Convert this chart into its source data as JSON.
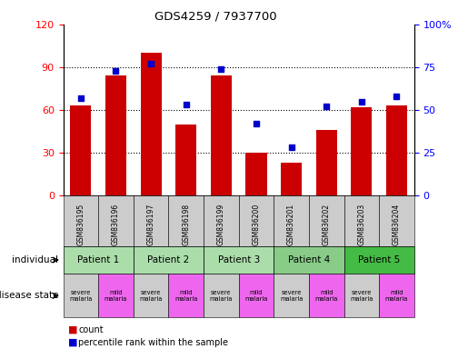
{
  "title": "GDS4259 / 7937700",
  "samples": [
    "GSM836195",
    "GSM836196",
    "GSM836197",
    "GSM836198",
    "GSM836199",
    "GSM836200",
    "GSM836201",
    "GSM836202",
    "GSM836203",
    "GSM836204"
  ],
  "counts": [
    63,
    84,
    100,
    50,
    84,
    30,
    23,
    46,
    62,
    63
  ],
  "percentiles": [
    57,
    73,
    77,
    53,
    74,
    42,
    28,
    52,
    55,
    58
  ],
  "ylim_left": [
    0,
    120
  ],
  "ylim_right": [
    0,
    100
  ],
  "yticks_left": [
    0,
    30,
    60,
    90,
    120
  ],
  "yticks_right": [
    0,
    25,
    50,
    75,
    100
  ],
  "ytick_labels_right": [
    "0",
    "25",
    "50",
    "75",
    "100%"
  ],
  "bar_color": "#cc0000",
  "dot_color": "#0000cc",
  "patients": [
    {
      "label": "Patient 1",
      "cols": [
        0,
        1
      ],
      "color": "#aaddaa"
    },
    {
      "label": "Patient 2",
      "cols": [
        2,
        3
      ],
      "color": "#aaddaa"
    },
    {
      "label": "Patient 3",
      "cols": [
        4,
        5
      ],
      "color": "#aaddaa"
    },
    {
      "label": "Patient 4",
      "cols": [
        6,
        7
      ],
      "color": "#88cc88"
    },
    {
      "label": "Patient 5",
      "cols": [
        8,
        9
      ],
      "color": "#44bb44"
    }
  ],
  "disease_states": [
    {
      "label": "severe\nmalaria",
      "col": 0,
      "color": "#cccccc"
    },
    {
      "label": "mild\nmalaria",
      "col": 1,
      "color": "#ee66ee"
    },
    {
      "label": "severe\nmalaria",
      "col": 2,
      "color": "#cccccc"
    },
    {
      "label": "mild\nmalaria",
      "col": 3,
      "color": "#ee66ee"
    },
    {
      "label": "severe\nmalaria",
      "col": 4,
      "color": "#cccccc"
    },
    {
      "label": "mild\nmalaria",
      "col": 5,
      "color": "#ee66ee"
    },
    {
      "label": "severe\nmalaria",
      "col": 6,
      "color": "#cccccc"
    },
    {
      "label": "mild\nmalaria",
      "col": 7,
      "color": "#ee66ee"
    },
    {
      "label": "severe\nmalaria",
      "col": 8,
      "color": "#cccccc"
    },
    {
      "label": "mild\nmalaria",
      "col": 9,
      "color": "#ee66ee"
    }
  ],
  "individual_label": "individual",
  "disease_label": "disease state",
  "legend_count": "count",
  "legend_percentile": "percentile rank within the sample",
  "sample_bg_color": "#cccccc"
}
